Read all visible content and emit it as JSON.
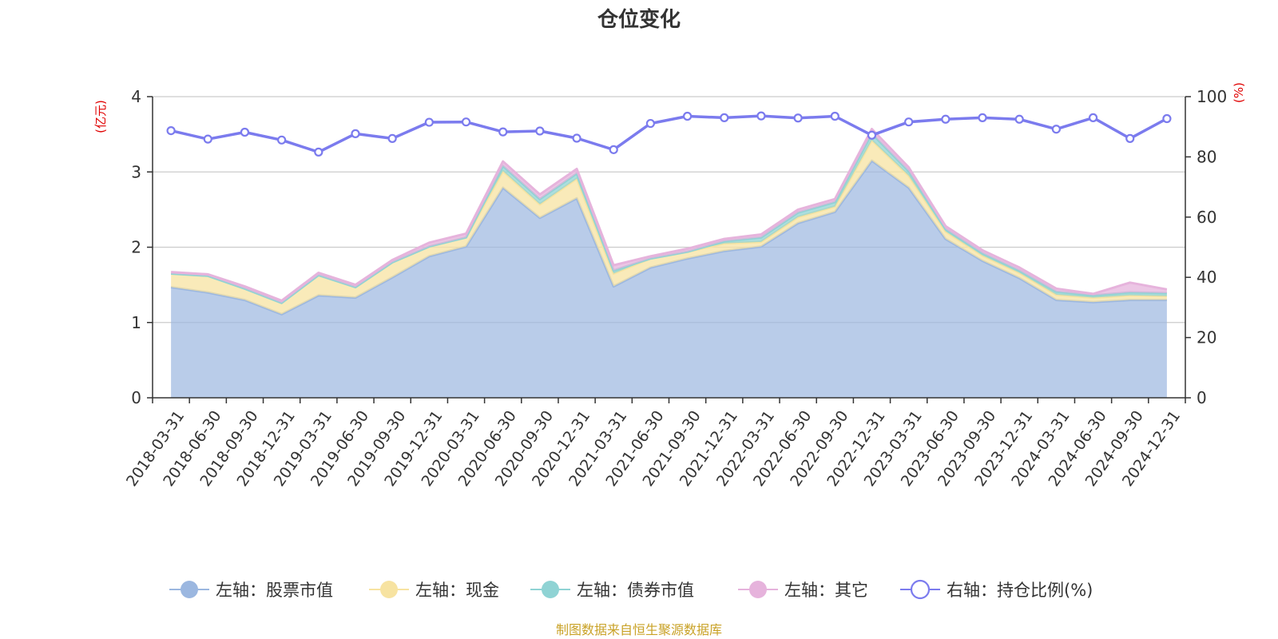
{
  "chart_data": {
    "type": "area",
    "title": "仓位变化",
    "source": "制图数据来自恒生聚源数据库",
    "left_axis": {
      "unit": "(亿元)",
      "ylim": [
        0,
        4
      ],
      "ticks": [
        0,
        1,
        2,
        3,
        4
      ]
    },
    "right_axis": {
      "unit": "(%)",
      "ylim": [
        0,
        100
      ],
      "ticks": [
        0,
        20,
        40,
        60,
        80,
        100
      ]
    },
    "categories": [
      "2018-03-31",
      "2018-06-30",
      "2018-09-30",
      "2018-12-31",
      "2019-03-31",
      "2019-06-30",
      "2019-09-30",
      "2019-12-31",
      "2020-03-31",
      "2020-06-30",
      "2020-09-30",
      "2020-12-31",
      "2021-03-31",
      "2021-06-30",
      "2021-09-30",
      "2021-12-31",
      "2022-03-31",
      "2022-06-30",
      "2022-09-30",
      "2022-12-31",
      "2023-03-31",
      "2023-06-30",
      "2023-09-30",
      "2023-12-31",
      "2024-03-31",
      "2024-06-30",
      "2024-09-30",
      "2024-12-31"
    ],
    "series": [
      {
        "name": "左轴：股票市值",
        "axis": "left",
        "stack": true,
        "color": "#9bb7e0",
        "values": [
          1.47,
          1.4,
          1.3,
          1.11,
          1.36,
          1.33,
          1.6,
          1.88,
          2.01,
          2.79,
          2.39,
          2.65,
          1.48,
          1.73,
          1.85,
          1.95,
          2.01,
          2.32,
          2.47,
          3.15,
          2.79,
          2.11,
          1.82,
          1.59,
          1.3,
          1.27,
          1.3,
          1.3
        ]
      },
      {
        "name": "左轴：现金",
        "axis": "left",
        "stack": true,
        "color": "#f7e3a1",
        "values": [
          0.18,
          0.22,
          0.15,
          0.15,
          0.27,
          0.14,
          0.2,
          0.13,
          0.12,
          0.22,
          0.18,
          0.26,
          0.17,
          0.12,
          0.09,
          0.1,
          0.06,
          0.08,
          0.07,
          0.27,
          0.16,
          0.1,
          0.07,
          0.07,
          0.07,
          0.06,
          0.06,
          0.05
        ]
      },
      {
        "name": "左轴：债券市值",
        "axis": "left",
        "stack": true,
        "color": "#8fd3d4",
        "values": [
          0,
          0,
          0,
          0,
          0,
          0,
          0,
          0,
          0,
          0.07,
          0.07,
          0.07,
          0.04,
          0,
          0,
          0.03,
          0.06,
          0.06,
          0.06,
          0.09,
          0.06,
          0.03,
          0.03,
          0.03,
          0.04,
          0.03,
          0.04,
          0.04
        ]
      },
      {
        "name": "左轴：其它",
        "axis": "left",
        "stack": true,
        "color": "#e6b3dc",
        "values": [
          0.02,
          0.02,
          0.03,
          0.03,
          0.03,
          0.03,
          0.03,
          0.05,
          0.05,
          0.06,
          0.06,
          0.06,
          0.07,
          0.03,
          0.04,
          0.03,
          0.04,
          0.04,
          0.04,
          0.06,
          0.05,
          0.04,
          0.04,
          0.04,
          0.04,
          0.02,
          0.13,
          0.05
        ]
      },
      {
        "name": "右轴：持仓比例(%)",
        "axis": "right",
        "type": "line",
        "color": "#7b7bee",
        "values": [
          88.7,
          85.9,
          88.2,
          85.6,
          81.6,
          87.7,
          86.1,
          91.5,
          91.6,
          88.3,
          88.6,
          86.2,
          82.4,
          91.1,
          93.5,
          93.0,
          93.6,
          92.9,
          93.5,
          87.2,
          91.6,
          92.5,
          93.0,
          92.5,
          89.2,
          93.0,
          86.1,
          92.7
        ]
      }
    ]
  }
}
